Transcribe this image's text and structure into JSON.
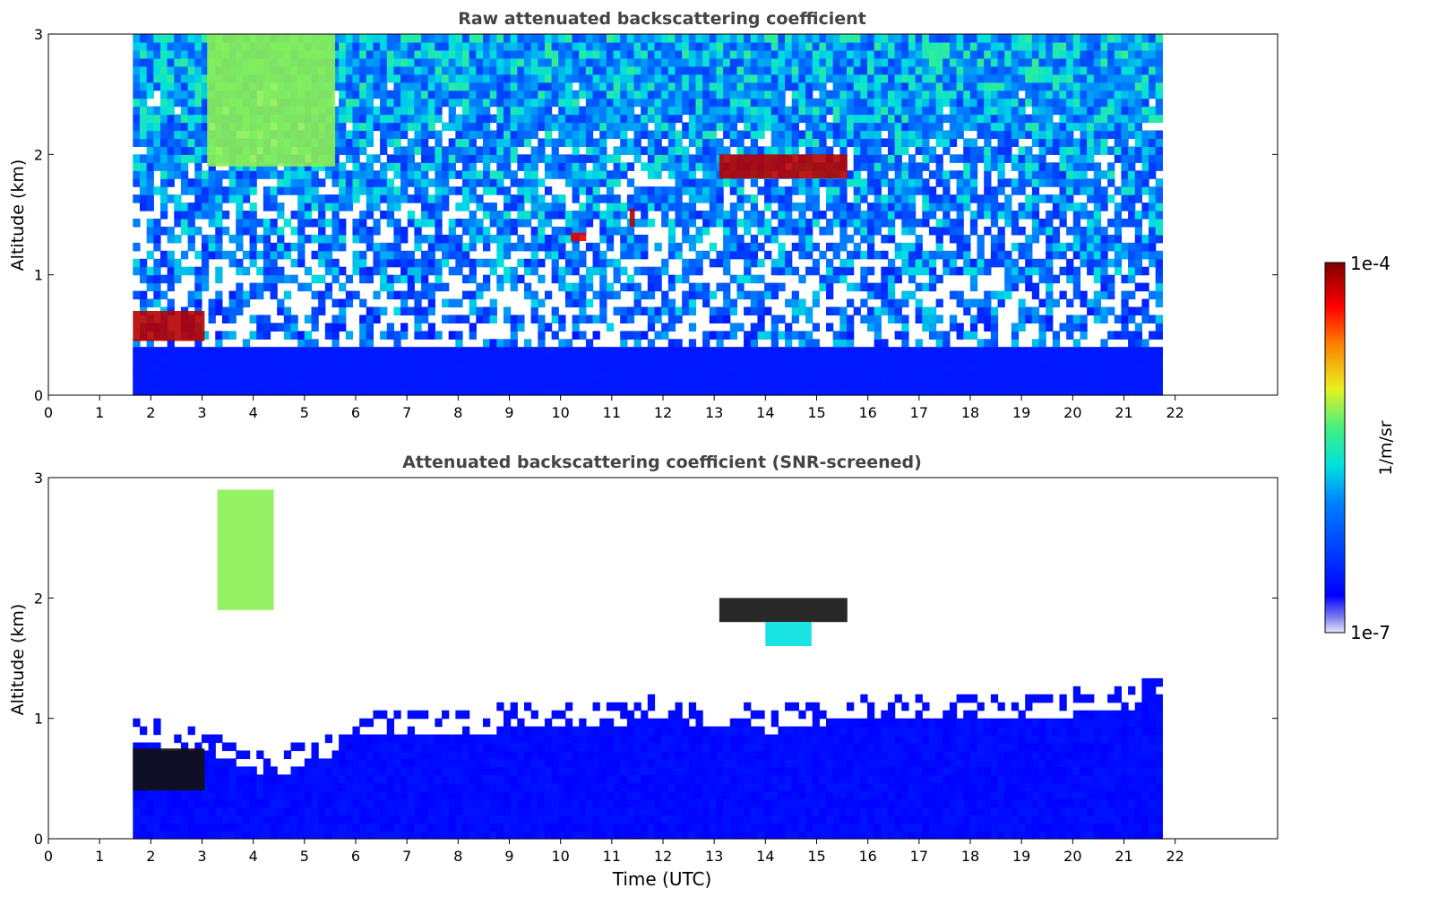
{
  "chart_data": [
    {
      "type": "heatmap",
      "title": "Raw attenuated backscattering coefficient",
      "xlabel": "",
      "ylabel": "Altitude (km)",
      "xlim": [
        0,
        24
      ],
      "ylim": [
        0,
        3
      ],
      "x_ticks": [
        "0",
        "1",
        "2",
        "3",
        "4",
        "5",
        "6",
        "7",
        "8",
        "9",
        "10",
        "11",
        "12",
        "13",
        "14",
        "15",
        "16",
        "17",
        "18",
        "19",
        "20",
        "21",
        "22"
      ],
      "y_ticks": [
        "0",
        "1",
        "2",
        "3"
      ],
      "data_time_range": [
        1.65,
        21.75
      ],
      "regions": [
        {
          "description": "near-surface aerosol",
          "t": [
            1.65,
            21.75
          ],
          "alt": [
            0,
            0.4
          ],
          "level": 0.15
        },
        {
          "description": "low cloud",
          "t": [
            1.65,
            3.05
          ],
          "alt": [
            0.45,
            0.7
          ],
          "level": 0.95
        },
        {
          "description": "ice cloud",
          "t": [
            3.1,
            5.6
          ],
          "alt": [
            1.9,
            3.0
          ],
          "level": 0.6
        },
        {
          "description": "cloud",
          "t": [
            13.1,
            15.6
          ],
          "alt": [
            1.8,
            2.0
          ],
          "level": 0.95
        },
        {
          "description": "cloud",
          "t": [
            11.35,
            11.45
          ],
          "alt": [
            1.4,
            1.55
          ],
          "level": 0.95
        },
        {
          "description": "cloud",
          "t": [
            10.2,
            10.5
          ],
          "alt": [
            1.28,
            1.35
          ],
          "level": 0.9
        }
      ]
    },
    {
      "type": "heatmap",
      "title": "Attenuated backscattering coefficient (SNR-screened)",
      "xlabel": "Time (UTC)",
      "ylabel": "Altitude (km)",
      "xlim": [
        0,
        24
      ],
      "ylim": [
        0,
        3
      ],
      "x_ticks": [
        "0",
        "1",
        "2",
        "3",
        "4",
        "5",
        "6",
        "7",
        "8",
        "9",
        "10",
        "11",
        "12",
        "13",
        "14",
        "15",
        "16",
        "17",
        "18",
        "19",
        "20",
        "21",
        "22"
      ],
      "y_ticks": [
        "0",
        "1",
        "2",
        "3"
      ],
      "data_time_range": [
        1.65,
        21.75
      ],
      "boundary_layer_top_km": [
        [
          1.65,
          0.75
        ],
        [
          3.0,
          0.7
        ],
        [
          4.0,
          0.5
        ],
        [
          5.0,
          0.55
        ],
        [
          6.0,
          0.8
        ],
        [
          8.0,
          0.85
        ],
        [
          10.0,
          0.9
        ],
        [
          12.0,
          0.95
        ],
        [
          14.0,
          0.85
        ],
        [
          16.0,
          0.95
        ],
        [
          18.0,
          1.0
        ],
        [
          20.0,
          1.0
        ],
        [
          21.75,
          1.1
        ]
      ],
      "regions": [
        {
          "description": "low cloud",
          "t": [
            1.65,
            3.05
          ],
          "alt": [
            0.4,
            0.75
          ],
          "level": 1.0
        },
        {
          "description": "ice cloud",
          "t": [
            3.3,
            4.4
          ],
          "alt": [
            1.9,
            2.9
          ],
          "level": 0.6
        },
        {
          "description": "cloud",
          "t": [
            13.1,
            15.6
          ],
          "alt": [
            1.8,
            2.0
          ],
          "level": 1.0
        },
        {
          "description": "cloud",
          "t": [
            14.0,
            14.9
          ],
          "alt": [
            1.6,
            1.8
          ],
          "level": 0.45
        }
      ]
    }
  ],
  "colorbar": {
    "label": "1/m/sr",
    "max_label": "1e-4",
    "min_label": "1e-7",
    "colormap": "jet"
  },
  "colors": {
    "axis": "#000000",
    "title": "#444444",
    "background": "#ffffff"
  }
}
